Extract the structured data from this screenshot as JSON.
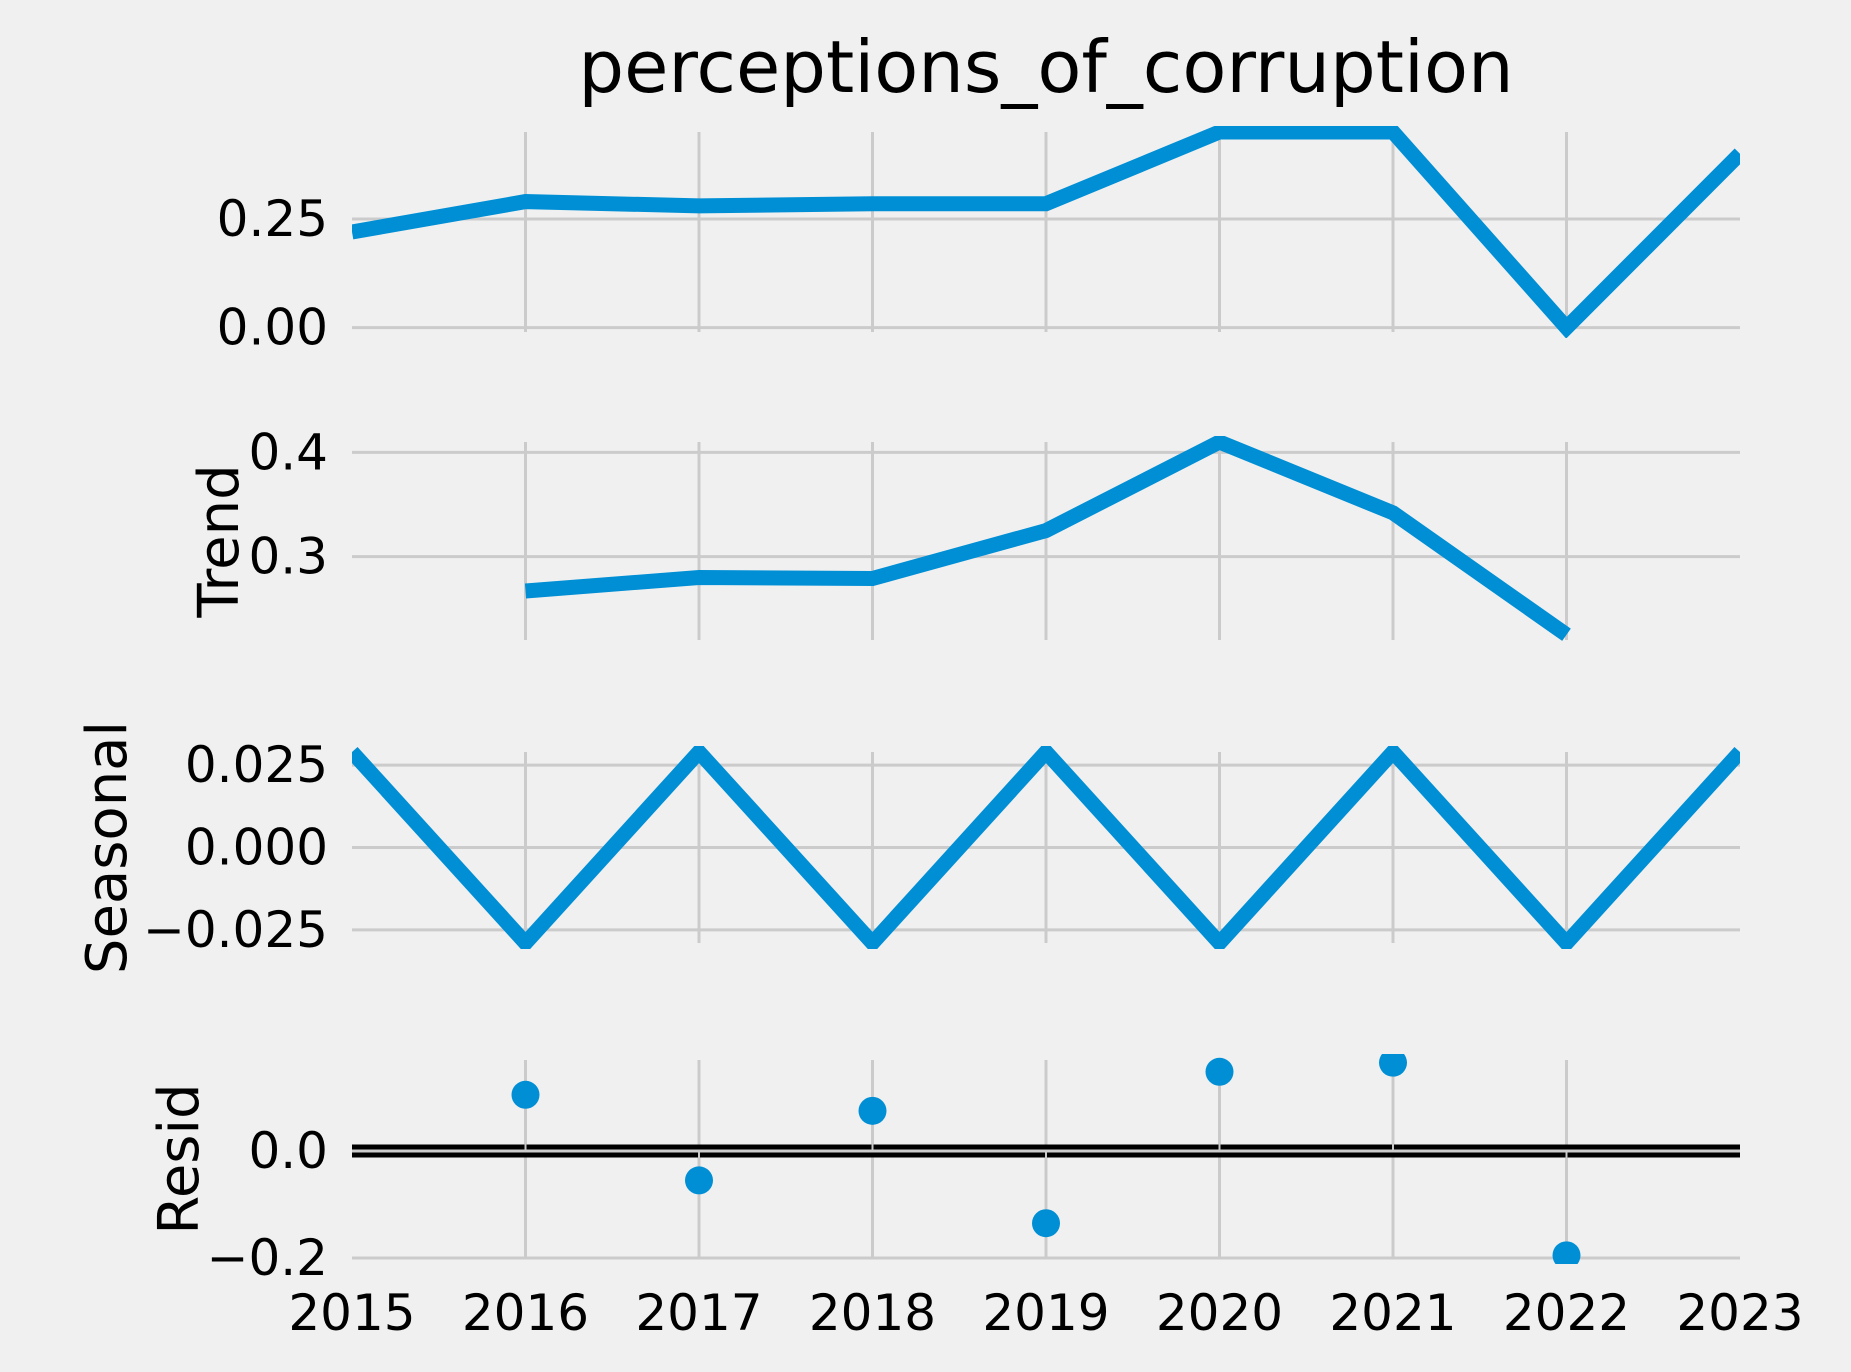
{
  "chart_data": {
    "type": "line",
    "title": "perceptions_of_corruption",
    "x": [
      "2015",
      "2016",
      "2017",
      "2018",
      "2019",
      "2020",
      "2021",
      "2022",
      "2023"
    ],
    "xlim": [
      2015,
      2023
    ],
    "line_color": "#008fd5",
    "panels": [
      {
        "name": "observed",
        "ylabel": "",
        "kind": "line",
        "x": [
          2015,
          2016,
          2017,
          2018,
          2019,
          2020,
          2021,
          2022,
          2023
        ],
        "values": [
          0.22,
          0.29,
          0.28,
          0.285,
          0.285,
          0.45,
          0.45,
          0.0,
          0.4
        ],
        "ylim": [
          -0.01,
          0.45
        ],
        "yticks": [
          {
            "v": 0.0,
            "label": "0.00"
          },
          {
            "v": 0.25,
            "label": "0.25"
          }
        ]
      },
      {
        "name": "trend",
        "ylabel": "Trend",
        "kind": "line",
        "x": [
          2016,
          2017,
          2018,
          2019,
          2020,
          2021,
          2022
        ],
        "values": [
          0.267,
          0.28,
          0.279,
          0.325,
          0.41,
          0.342,
          0.225
        ],
        "ylim": [
          0.22,
          0.41
        ],
        "yticks": [
          {
            "v": 0.3,
            "label": "0.3"
          },
          {
            "v": 0.4,
            "label": "0.4"
          }
        ]
      },
      {
        "name": "seasonal",
        "ylabel": "Seasonal",
        "kind": "line",
        "x": [
          2015,
          2016,
          2017,
          2018,
          2019,
          2020,
          2021,
          2022,
          2023
        ],
        "values": [
          0.029,
          -0.029,
          0.029,
          -0.029,
          0.029,
          -0.029,
          0.029,
          -0.029,
          0.029
        ],
        "ylim": [
          -0.029,
          0.029
        ],
        "yticks": [
          {
            "v": -0.025,
            "label": "−0.025"
          },
          {
            "v": 0.0,
            "label": "0.000"
          },
          {
            "v": 0.025,
            "label": "0.025"
          }
        ]
      },
      {
        "name": "resid",
        "ylabel": "Resid",
        "kind": "scatter",
        "x": [
          2016,
          2017,
          2018,
          2019,
          2020,
          2021,
          2022
        ],
        "values": [
          0.105,
          -0.055,
          0.075,
          -0.135,
          0.148,
          0.165,
          -0.195
        ],
        "ylim": [
          -0.2,
          0.17
        ],
        "yticks": [
          {
            "v": -0.2,
            "label": "−0.2"
          },
          {
            "v": 0.0,
            "label": "0.0"
          }
        ]
      }
    ]
  }
}
